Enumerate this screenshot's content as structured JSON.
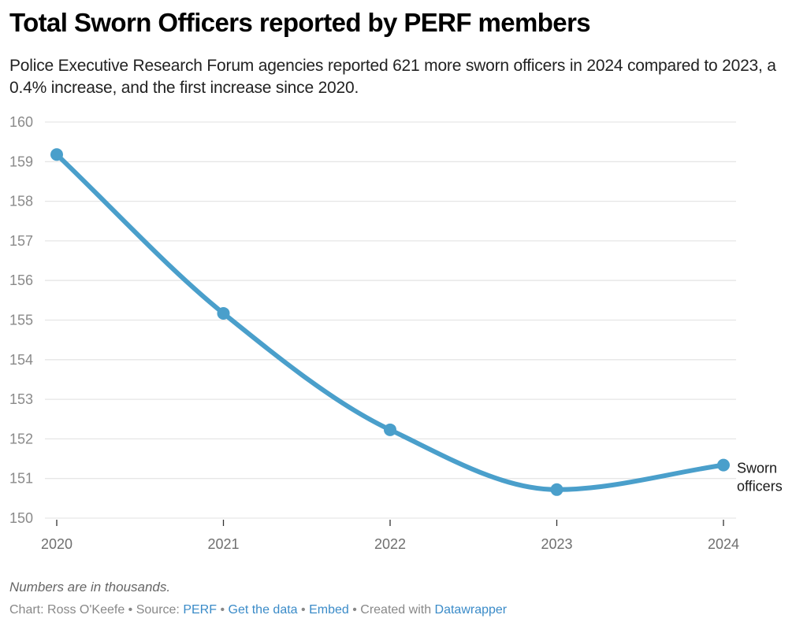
{
  "header": {
    "title": "Total Sworn Officers reported by PERF members",
    "subtitle": "Police Executive Research Forum agencies reported 621 more sworn officers in 2024 compared to 2023, a 0.4% increase, and the first increase since 2020."
  },
  "chart_data": {
    "type": "line",
    "title": "Total Sworn Officers reported by PERF members",
    "xlabel": "",
    "ylabel": "",
    "x": [
      "2020",
      "2021",
      "2022",
      "2023",
      "2024"
    ],
    "series": [
      {
        "name": "Sworn officers",
        "label_lines": [
          "Sworn",
          "officers"
        ],
        "color": "#4a9fcb",
        "values": [
          159.18,
          155.17,
          152.23,
          150.72,
          151.34
        ]
      }
    ],
    "ylim": [
      150,
      160
    ],
    "yticks": [
      "150",
      "151",
      "152",
      "153",
      "154",
      "155",
      "156",
      "157",
      "158",
      "159",
      "160"
    ],
    "grid": true,
    "legend": "direct-label-right",
    "units_note": "Numbers are in thousands."
  },
  "footer": {
    "notes": "Numbers are in thousands.",
    "chart_by": "Chart: Ross O'Keefe",
    "separator": " • ",
    "source_prefix": "Source: ",
    "source_link": "PERF",
    "get_data_link": "Get the data",
    "embed_link": "Embed",
    "created_prefix": "Created with ",
    "datawrapper_link": "Datawrapper"
  },
  "colors": {
    "line": "#4a9fcb",
    "link": "#3a8bc8",
    "grid": "#e6e6e6"
  }
}
